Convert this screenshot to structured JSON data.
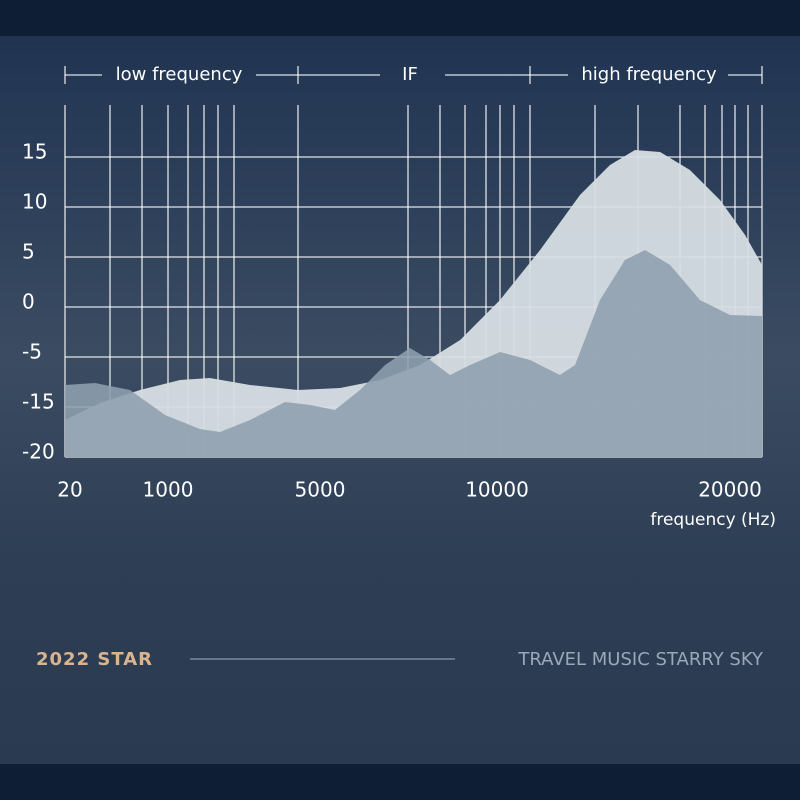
{
  "chart_data": {
    "type": "area",
    "band_labels": [
      "low frequency",
      "IF",
      "high frequency"
    ],
    "x_label": "frequency (Hz)",
    "xlim": [
      0,
      21400
    ],
    "xticks": [
      20,
      1000,
      5000,
      10000,
      20000
    ],
    "ylim": [
      -20,
      20
    ],
    "yticks": [
      15,
      10,
      5,
      0,
      -5,
      -15,
      -20
    ],
    "grid": true,
    "series": [
      {
        "color": "#d7dee4",
        "x": [
          0,
          320,
          720,
          1320,
          2100,
          3160,
          4420,
          5570,
          6700,
          7830,
          8960,
          10130,
          11850,
          13560,
          14850,
          15920,
          17000,
          18280,
          19570,
          20660,
          21400
        ],
        "values": [
          -16.3,
          -14.2,
          -11.6,
          -9.6,
          -9.2,
          -10.6,
          -11.6,
          -11.2,
          -9.6,
          -6.6,
          -3.3,
          0.7,
          5.7,
          11.2,
          14.2,
          15.7,
          15.5,
          13.7,
          10.7,
          7.2,
          4.2
        ]
      },
      {
        "color": "#8e9fae",
        "x": [
          0,
          270,
          620,
          970,
          1840,
          2370,
          3160,
          4080,
          4740,
          5420,
          6130,
          6840,
          7540,
          8110,
          8670,
          9240,
          10130,
          11420,
          12700,
          13350,
          14420,
          15490,
          16350,
          17430,
          18710,
          20000,
          21400
        ],
        "values": [
          -10.6,
          -10.2,
          -11.6,
          -15.8,
          -17.2,
          -17.5,
          -16.3,
          -14.0,
          -14.6,
          -15.3,
          -11.6,
          -6.6,
          -4.1,
          -5.6,
          -8.6,
          -6.6,
          -4.5,
          -5.6,
          -8.6,
          -6.6,
          0.7,
          4.7,
          5.7,
          4.2,
          0.7,
          -0.8,
          -0.9
        ]
      }
    ]
  },
  "footer": {
    "brand": "2022 STAR",
    "tagline": "TRAVEL MUSIC STARRY SKY"
  }
}
